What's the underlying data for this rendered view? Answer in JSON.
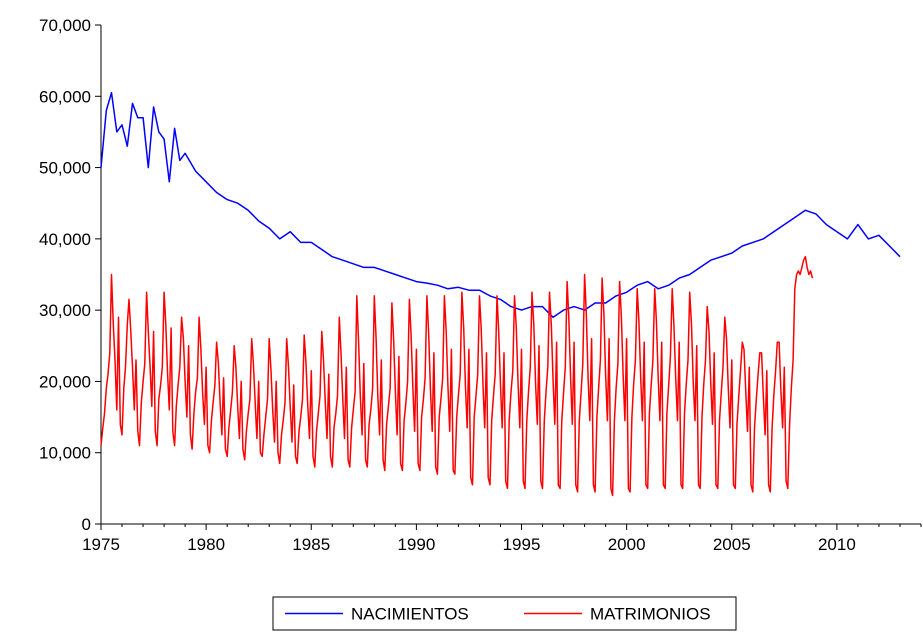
{
  "chart_data": {
    "type": "line",
    "title": "",
    "xlabel": "",
    "ylabel": "",
    "x_start": 1975,
    "x_end": 2013.92,
    "xlim": [
      1975,
      2014
    ],
    "ylim": [
      0,
      70000
    ],
    "x_ticks": [
      1975,
      1980,
      1985,
      1990,
      1995,
      2000,
      2005,
      2010
    ],
    "x_tick_labels": [
      "1975",
      "1980",
      "1985",
      "1990",
      "1995",
      "2000",
      "2005",
      "2010"
    ],
    "y_ticks": [
      0,
      10000,
      20000,
      30000,
      40000,
      50000,
      60000,
      70000
    ],
    "y_tick_labels": [
      "0",
      "10,000",
      "20,000",
      "30,000",
      "40,000",
      "50,000",
      "60,000",
      "70,000"
    ],
    "grid": false,
    "legend_position": "bottom-center",
    "series": [
      {
        "name": "NACIMIENTOS",
        "color": "#0000ff",
        "x": [
          1975.0,
          1975.25,
          1975.5,
          1975.75,
          1976.0,
          1976.25,
          1976.5,
          1976.75,
          1977.0,
          1977.25,
          1977.5,
          1977.75,
          1978.0,
          1978.25,
          1978.5,
          1978.75,
          1979.0,
          1979.5,
          1980.0,
          1980.5,
          1981.0,
          1981.5,
          1982.0,
          1982.5,
          1983.0,
          1983.5,
          1984.0,
          1984.5,
          1985.0,
          1985.5,
          1986.0,
          1986.5,
          1987.0,
          1987.5,
          1988.0,
          1988.5,
          1989.0,
          1989.5,
          1990.0,
          1990.5,
          1991.0,
          1991.5,
          1992.0,
          1992.5,
          1993.0,
          1993.5,
          1994.0,
          1994.5,
          1995.0,
          1995.5,
          1996.0,
          1996.5,
          1997.0,
          1997.5,
          1998.0,
          1998.5,
          1999.0,
          1999.5,
          2000.0,
          2000.5,
          2001.0,
          2001.5,
          2002.0,
          2002.5,
          2003.0,
          2003.5,
          2004.0,
          2004.5,
          2005.0,
          2005.5,
          2006.0,
          2006.5,
          2007.0,
          2007.5,
          2008.0,
          2008.5,
          2009.0,
          2009.5,
          2010.0,
          2010.5,
          2011.0,
          2011.5,
          2012.0,
          2012.5,
          2013.0
        ],
        "values": [
          50000,
          58000,
          60500,
          55000,
          56000,
          53000,
          59000,
          57000,
          57000,
          50000,
          58500,
          55000,
          54000,
          48000,
          55500,
          51000,
          52000,
          49500,
          48000,
          46500,
          45500,
          45000,
          44000,
          42500,
          41500,
          40000,
          41000,
          39500,
          39500,
          38500,
          37500,
          37000,
          36500,
          36000,
          36000,
          35500,
          35000,
          34500,
          34000,
          33800,
          33500,
          33000,
          33200,
          32800,
          32800,
          32000,
          31500,
          30500,
          30000,
          30500,
          30500,
          29000,
          30000,
          30500,
          30000,
          31000,
          31000,
          32000,
          32500,
          33500,
          34000,
          33000,
          33500,
          34500,
          35000,
          36000,
          37000,
          37500,
          38000,
          39000,
          39500,
          40000,
          41000,
          42000,
          43000,
          44000,
          43500,
          42000,
          41000,
          40000,
          42000,
          40000,
          40500,
          39000,
          37500
        ]
      },
      {
        "name": "MATRIMONIOS",
        "color": "#ff0000",
        "x_start": 1975.0,
        "x_step": 0.0833333,
        "values": [
          11000,
          13500,
          15500,
          19000,
          21000,
          24000,
          35000,
          28000,
          23000,
          16000,
          29000,
          14000,
          12500,
          19000,
          22000,
          28000,
          31500,
          27000,
          22000,
          16000,
          23000,
          13000,
          11000,
          17000,
          20000,
          22500,
          32500,
          27000,
          22000,
          16500,
          27000,
          13000,
          11000,
          17500,
          19500,
          22000,
          32500,
          28000,
          21000,
          16000,
          27500,
          13000,
          11000,
          16500,
          19500,
          22000,
          29000,
          26000,
          20000,
          15000,
          25000,
          12500,
          10500,
          15500,
          18500,
          20500,
          29000,
          24500,
          18500,
          14000,
          22000,
          11000,
          10000,
          14500,
          17000,
          19500,
          25500,
          22500,
          17000,
          12500,
          20500,
          10500,
          9500,
          13500,
          16000,
          18500,
          25000,
          22000,
          16500,
          12000,
          20000,
          10500,
          9000,
          13000,
          15500,
          17500,
          26000,
          22500,
          17000,
          12000,
          20000,
          10000,
          9500,
          12500,
          15000,
          17500,
          26000,
          21500,
          16000,
          11500,
          20000,
          10000,
          8500,
          12500,
          14500,
          17000,
          26000,
          22000,
          16500,
          11500,
          19500,
          9500,
          8500,
          13000,
          15000,
          17500,
          26500,
          22500,
          16500,
          12000,
          21500,
          9500,
          8000,
          13000,
          15500,
          18000,
          27000,
          23000,
          17000,
          12000,
          21000,
          9500,
          8000,
          13500,
          15500,
          18000,
          29000,
          24000,
          17500,
          12000,
          22000,
          9000,
          8000,
          13500,
          16000,
          18500,
          32000,
          25500,
          18000,
          12500,
          22500,
          9000,
          8000,
          14000,
          16000,
          19000,
          32000,
          26000,
          18000,
          12500,
          23000,
          9000,
          7500,
          14000,
          16500,
          19000,
          31000,
          26000,
          18500,
          12500,
          23500,
          8500,
          7500,
          14500,
          17000,
          20000,
          31500,
          26500,
          19000,
          13000,
          24500,
          8500,
          7500,
          15000,
          17500,
          20500,
          32000,
          27000,
          19000,
          13000,
          24000,
          8000,
          7000,
          15000,
          17500,
          20500,
          32000,
          27000,
          19500,
          13000,
          24500,
          7500,
          7000,
          15000,
          18000,
          21000,
          32500,
          27500,
          19500,
          13500,
          24500,
          6500,
          5500,
          15000,
          18000,
          21000,
          32000,
          27500,
          19500,
          13500,
          24000,
          6500,
          5500,
          14500,
          18000,
          21000,
          32000,
          27000,
          19500,
          13500,
          24000,
          6000,
          5000,
          14500,
          18500,
          21500,
          32000,
          27500,
          20000,
          13500,
          24500,
          6000,
          5000,
          14500,
          18500,
          22000,
          32500,
          28000,
          20000,
          14000,
          25000,
          6000,
          5000,
          14500,
          18500,
          22000,
          32500,
          28000,
          20000,
          14000,
          25500,
          5500,
          5000,
          14500,
          18500,
          22000,
          34000,
          29000,
          20500,
          14000,
          25500,
          5500,
          4500,
          14500,
          18500,
          22500,
          35000,
          29500,
          20500,
          14500,
          26000,
          5500,
          4500,
          15000,
          19000,
          23000,
          34500,
          29500,
          21000,
          14500,
          26000,
          5000,
          4000,
          14500,
          19000,
          22500,
          34000,
          29000,
          21000,
          14500,
          26000,
          5000,
          4500,
          15000,
          19500,
          23000,
          33000,
          28500,
          20500,
          14500,
          25500,
          5500,
          5000,
          15500,
          19500,
          23000,
          33000,
          28500,
          20500,
          14500,
          25500,
          5500,
          5000,
          15500,
          19500,
          23500,
          33000,
          28000,
          20500,
          14500,
          25500,
          5500,
          5000,
          15500,
          19500,
          23000,
          32500,
          28000,
          20000,
          14500,
          25000,
          5500,
          5000,
          15000,
          19500,
          23000,
          30500,
          27000,
          20000,
          14000,
          24000,
          5500,
          5000,
          14500,
          18500,
          22000,
          29000,
          26000,
          19000,
          13500,
          23000,
          5500,
          5000,
          14000,
          18000,
          21500,
          25500,
          24500,
          18500,
          13000,
          22000,
          5500,
          4500,
          13500,
          17500,
          21000,
          24000,
          24000,
          18000,
          12500,
          21500,
          5500,
          4500,
          13500,
          18000,
          21500,
          25500,
          25500,
          19000,
          13500,
          22000,
          6000,
          5000,
          14000,
          19000,
          23000,
          33000,
          35000,
          35500,
          35000,
          36000,
          37000,
          37500,
          36000,
          35000,
          35500,
          34500
        ]
      }
    ]
  },
  "legend": {
    "items": [
      {
        "label": "NACIMIENTOS",
        "color": "#0000ff"
      },
      {
        "label": "MATRIMONIOS",
        "color": "#ff0000"
      }
    ]
  }
}
